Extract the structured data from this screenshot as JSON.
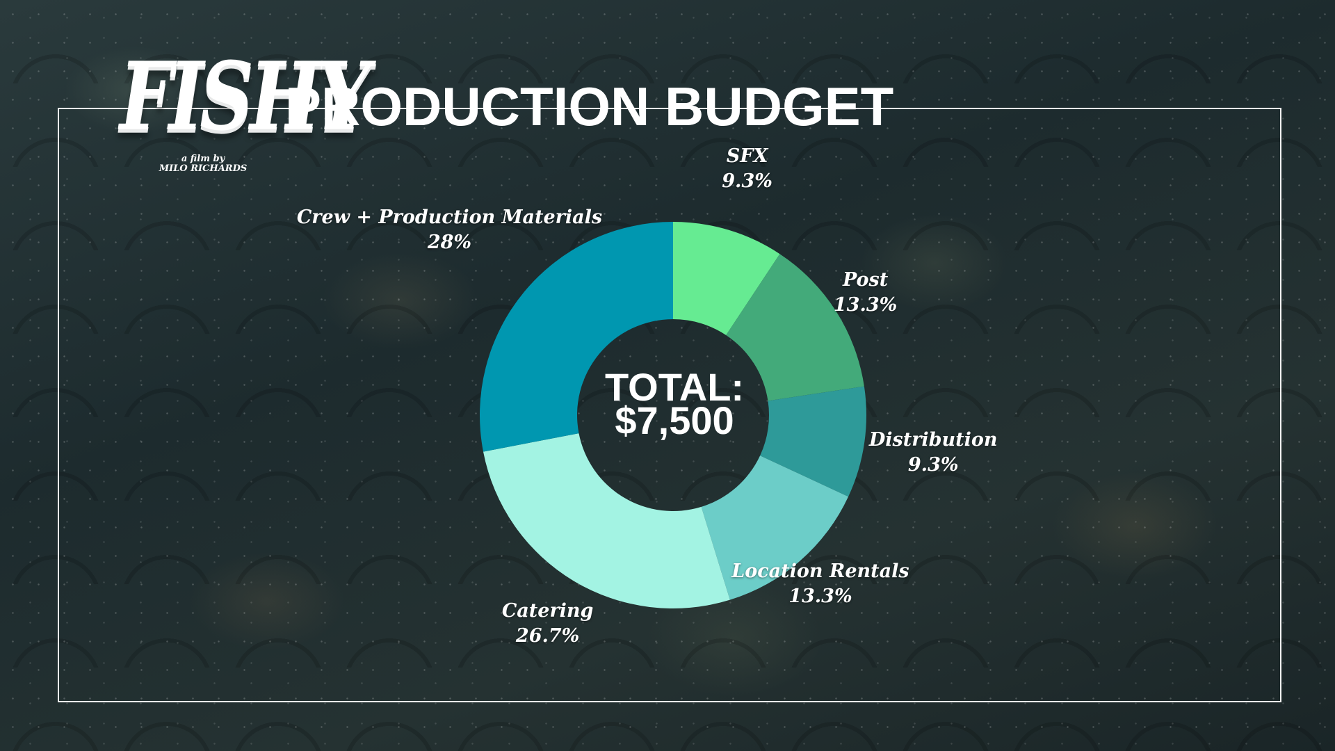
{
  "logo": {
    "word": "FISHY",
    "subtitle_line1": "a film by",
    "subtitle_line2": "MILO RICHARDS"
  },
  "title": "PRODUCTION BUDGET",
  "center": {
    "line1": "TOTAL:",
    "line2": "$7,500"
  },
  "chart_data": {
    "type": "pie",
    "donut": true,
    "title": "PRODUCTION BUDGET",
    "total_label": "TOTAL: $7,500",
    "categories": [
      "SFX",
      "Post",
      "Distribution",
      "Location Rentals",
      "Catering",
      "Crew + Production Materials"
    ],
    "values": [
      9.3,
      13.3,
      9.3,
      13.3,
      26.7,
      28
    ],
    "value_labels": [
      "9.3%",
      "13.3%",
      "9.3%",
      "13.3%",
      "26.7%",
      "28%"
    ],
    "colors": [
      "#66eb92",
      "#43aa7a",
      "#2e9a99",
      "#6ccdc8",
      "#a3f3e3",
      "#0097b0"
    ],
    "start_angle": "12 o'clock",
    "direction": "clockwise",
    "legend": "none (labels placed beside slices)"
  }
}
